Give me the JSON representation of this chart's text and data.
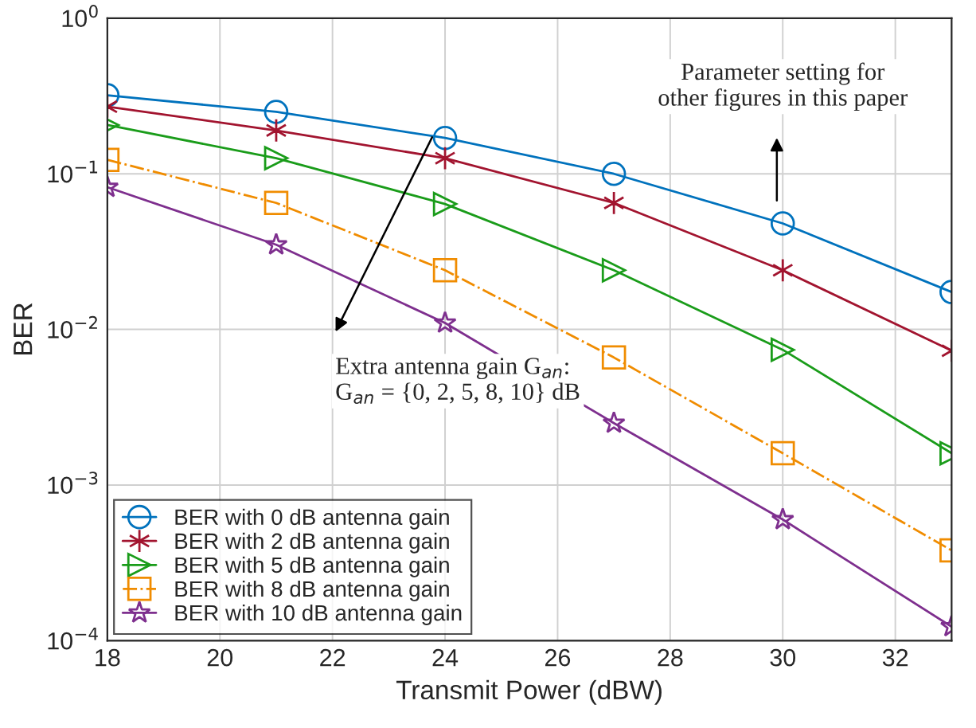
{
  "chart_data": {
    "type": "line",
    "xlabel": "Transmit Power (dBW)",
    "ylabel": "BER",
    "x": [
      18,
      21,
      24,
      27,
      30,
      33
    ],
    "series": [
      {
        "name": "BER with 0 dB antenna gain",
        "color": "#0072bd",
        "marker": "circle",
        "line_style": "solid",
        "values": [
          0.32,
          0.25,
          0.17,
          0.1,
          0.048,
          0.0174
        ]
      },
      {
        "name": "BER with 2 dB antenna gain",
        "color": "#a2142f",
        "marker": "cross",
        "line_style": "solid",
        "values": [
          0.27,
          0.19,
          0.126,
          0.065,
          0.024,
          0.0073
        ]
      },
      {
        "name": "BER with 5 dB antenna gain",
        "color": "#1a9c1a",
        "marker": "triangle",
        "line_style": "solid",
        "values": [
          0.206,
          0.126,
          0.064,
          0.024,
          0.0074,
          0.0016
        ]
      },
      {
        "name": "BER with 8 dB antenna gain",
        "color": "#f08c00",
        "marker": "square",
        "line_style": "dashed",
        "values": [
          0.123,
          0.065,
          0.024,
          0.0066,
          0.0016,
          0.00038
        ]
      },
      {
        "name": "BER with 10 dB antenna gain",
        "color": "#7e2f8e",
        "marker": "star",
        "line_style": "solid",
        "values": [
          0.082,
          0.035,
          0.011,
          0.0025,
          0.0006,
          0.000123
        ]
      }
    ],
    "log": "y",
    "xlim": [
      18,
      33
    ],
    "ylim": [
      0.0001,
      1
    ],
    "xticks": [
      18,
      20,
      22,
      24,
      26,
      28,
      30,
      32
    ],
    "yticks": [
      {
        "value": 0.0001,
        "label": "10$^{−4}$"
      },
      {
        "value": 0.001,
        "label": "10$^{−3}$"
      },
      {
        "value": 0.01,
        "label": "10$^{−2}$"
      },
      {
        "value": 0.1,
        "label": "10$^{−1}$"
      },
      {
        "value": 1,
        "label": "10$^{0}$"
      }
    ],
    "grid": true,
    "legend": "bottom left",
    "annotations": [
      "Parameter setting for\nother figures in this paper",
      "Extra antenna gain G$_{an}$:\nG$_{an}$ = {0, 2, 5, 8, 10} dB"
    ]
  }
}
